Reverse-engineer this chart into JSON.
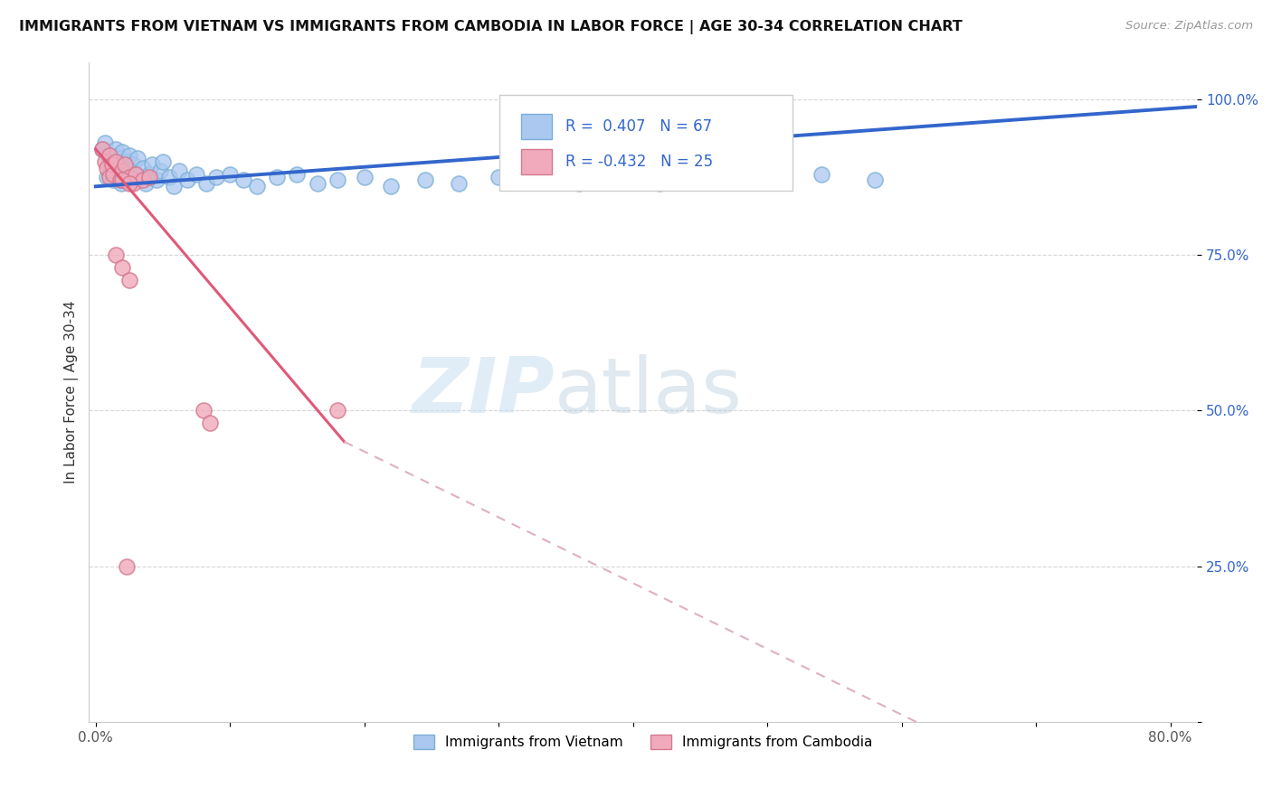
{
  "title": "IMMIGRANTS FROM VIETNAM VS IMMIGRANTS FROM CAMBODIA IN LABOR FORCE | AGE 30-34 CORRELATION CHART",
  "source": "Source: ZipAtlas.com",
  "ylabel": "In Labor Force | Age 30-34",
  "xlim": [
    -0.005,
    0.82
  ],
  "ylim": [
    0.0,
    1.06
  ],
  "xticks": [
    0.0,
    0.1,
    0.2,
    0.3,
    0.4,
    0.5,
    0.6,
    0.7,
    0.8
  ],
  "xticklabels": [
    "0.0%",
    "",
    "",
    "",
    "",
    "",
    "",
    "",
    "80.0%"
  ],
  "yticks": [
    0.0,
    0.25,
    0.5,
    0.75,
    1.0
  ],
  "yticklabels": [
    "",
    "25.0%",
    "50.0%",
    "75.0%",
    "100.0%"
  ],
  "vietnam_color": "#aac8f0",
  "vietnam_edge": "#7aaed6",
  "cambodia_color": "#f0aabb",
  "cambodia_edge": "#d47890",
  "vietnam_line_color": "#3366cc",
  "cambodia_line_solid_color": "#e05878",
  "cambodia_line_dash_color": "#e0b0c0",
  "R_vietnam": 0.407,
  "N_vietnam": 67,
  "R_cambodia": -0.432,
  "N_cambodia": 25,
  "legend_label_vietnam": "Immigrants from Vietnam",
  "legend_label_cambodia": "Immigrants from Cambodia",
  "watermark_zip": "ZIP",
  "watermark_atlas": "atlas",
  "grid_color": "#cccccc",
  "background_color": "#ffffff"
}
